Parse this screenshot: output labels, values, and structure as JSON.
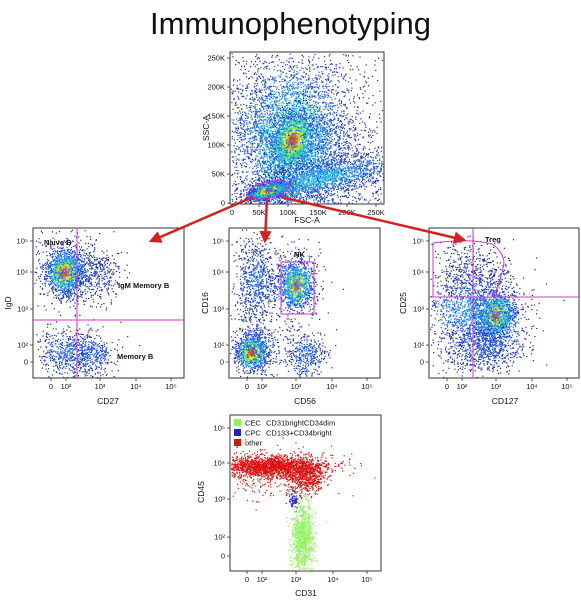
{
  "title": "Immunophenotyping",
  "colors": {
    "arrow": "#d71f1f",
    "gate": "#dd33cc",
    "cold": "#1a1aa0",
    "cec": "#8ef55a",
    "cpc": "#2222cc",
    "other": "#dd1111"
  },
  "top_plot": {
    "xlabel": "FSC-A",
    "ylabel": "SSC-A",
    "xticks": [
      "0",
      "50K",
      "100K",
      "150K",
      "200K",
      "250K"
    ],
    "yticks": [
      "0",
      "50K",
      "100K",
      "150K",
      "200K",
      "250K"
    ]
  },
  "bcell_plot": {
    "xlabel": "CD27",
    "ylabel": "IgD",
    "xticks": [
      "0",
      "10²",
      "10³",
      "10⁴",
      "10⁵"
    ],
    "yticks": [
      "0",
      "10²",
      "10³",
      "10⁴",
      "10⁵"
    ],
    "labels": {
      "naive": "Naive  B",
      "igm": "IgM Memory B",
      "memory": "Memory B"
    }
  },
  "nk_plot": {
    "xlabel": "CD56",
    "ylabel": "CD16",
    "xticks": [
      "0",
      "10²",
      "10³",
      "10⁴",
      "10⁵"
    ],
    "yticks": [
      "0",
      "10²",
      "10³",
      "10⁴",
      "10⁵"
    ],
    "labels": {
      "nk": "NK"
    }
  },
  "treg_plot": {
    "xlabel": "CD127",
    "ylabel": "CD25",
    "xticks": [
      "0",
      "10²",
      "10³",
      "10⁴",
      "10⁵"
    ],
    "yticks": [
      "0",
      "10²",
      "10³",
      "10⁴",
      "10⁵"
    ],
    "labels": {
      "treg": "Treg"
    }
  },
  "cec_plot": {
    "xlabel": "CD31",
    "ylabel": "CD45",
    "xticks": [
      "0",
      "10²",
      "10³",
      "10⁴",
      "10⁵"
    ],
    "yticks": [
      "0",
      "10²",
      "10³",
      "10⁴",
      "10⁵"
    ],
    "legend": [
      {
        "name": "CEC",
        "desc": "CD31brightCD34dim",
        "color": "#8ef55a"
      },
      {
        "name": "CPC",
        "desc": "CD133+CD34bright",
        "color": "#2222cc"
      },
      {
        "name": "other",
        "desc": "",
        "color": "#dd1111"
      }
    ]
  }
}
